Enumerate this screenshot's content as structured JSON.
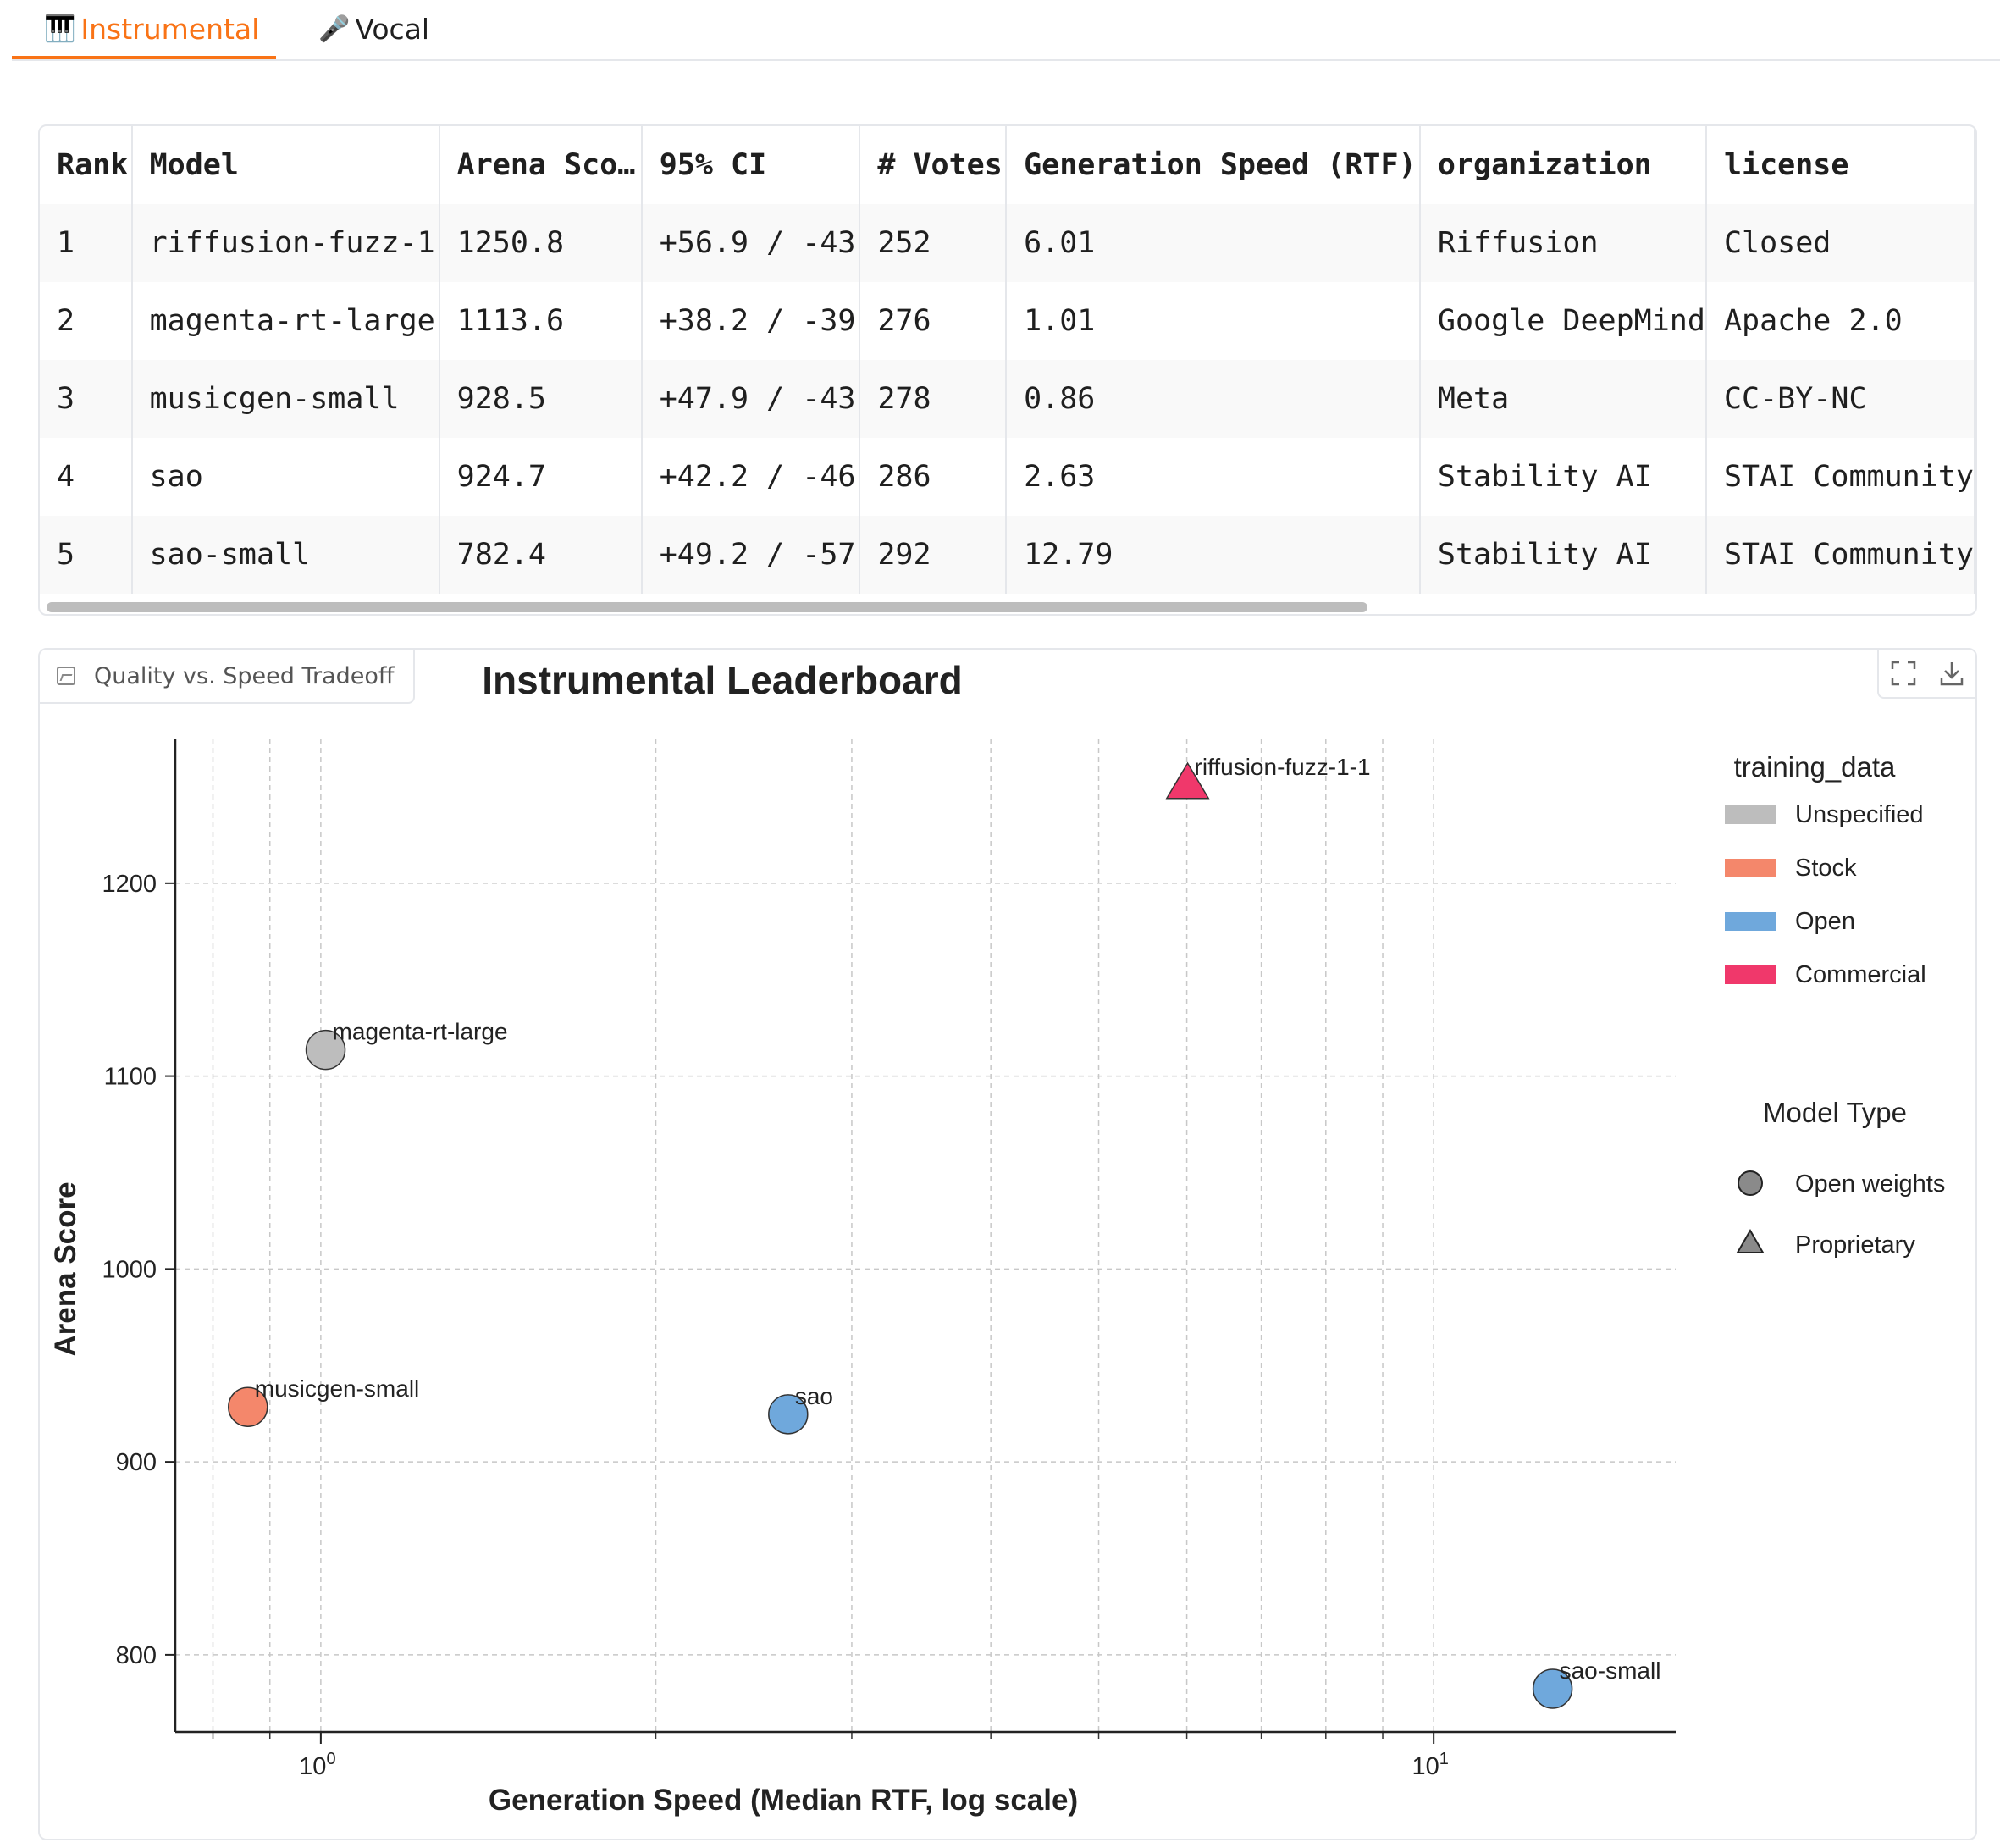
{
  "tabs": [
    {
      "label": "Instrumental",
      "icon": "piano-icon",
      "active": true
    },
    {
      "label": "Vocal",
      "icon": "microphone-icon",
      "active": false
    }
  ],
  "table": {
    "columns": [
      "Rank",
      "Model",
      "Arena Sco…",
      "95% CI",
      "# Votes",
      "Generation Speed (RTF)",
      "organization",
      "license"
    ],
    "rows": [
      [
        "1",
        "riffusion-fuzz-1",
        "1250.8",
        "+56.9 / -43",
        "252",
        "6.01",
        "Riffusion",
        "Closed"
      ],
      [
        "2",
        "magenta-rt-large",
        "1113.6",
        "+38.2 / -39",
        "276",
        "1.01",
        "Google DeepMind",
        "Apache 2.0"
      ],
      [
        "3",
        "musicgen-small",
        "928.5",
        "+47.9 / -43",
        "278",
        "0.86",
        "Meta",
        "CC-BY-NC"
      ],
      [
        "4",
        "sao",
        "924.7",
        "+42.2 / -46",
        "286",
        "2.63",
        "Stability AI",
        "STAI Community"
      ],
      [
        "5",
        "sao-small",
        "782.4",
        "+49.2 / -57",
        "292",
        "12.79",
        "Stability AI",
        "STAI Community"
      ]
    ]
  },
  "plot_panel": {
    "label": "Quality vs. Speed Tradeoff",
    "icons": [
      "image-icon",
      "fullscreen-icon",
      "download-icon"
    ]
  },
  "chart_data": {
    "type": "scatter",
    "title": "Instrumental Leaderboard",
    "xlabel": "Generation Speed (Median RTF, log scale)",
    "ylabel": "Arena Score",
    "xscale": "log",
    "xlim": [
      0.74,
      16.5
    ],
    "ylim": [
      760,
      1275
    ],
    "xticks": [
      {
        "value": 1,
        "base": "10",
        "exp": "0"
      },
      {
        "value": 10,
        "base": "10",
        "exp": "1"
      }
    ],
    "yticks": [
      800,
      900,
      1000,
      1100,
      1200
    ],
    "grid": true,
    "points": [
      {
        "label": "riffusion-fuzz-1-1",
        "x": 6.01,
        "y": 1250.8,
        "training_data": "Commercial",
        "model_type": "Proprietary"
      },
      {
        "label": "magenta-rt-large",
        "x": 1.01,
        "y": 1113.6,
        "training_data": "Unspecified",
        "model_type": "Open weights"
      },
      {
        "label": "musicgen-small",
        "x": 0.86,
        "y": 928.5,
        "training_data": "Stock",
        "model_type": "Open weights"
      },
      {
        "label": "sao",
        "x": 2.63,
        "y": 924.7,
        "training_data": "Open",
        "model_type": "Open weights"
      },
      {
        "label": "sao-small",
        "x": 12.79,
        "y": 782.4,
        "training_data": "Open",
        "model_type": "Open weights"
      }
    ],
    "legend": {
      "placement": "right",
      "color_title": "training_data",
      "colors": [
        {
          "name": "Unspecified",
          "color": "#bdbdbd"
        },
        {
          "name": "Stock",
          "color": "#f4876b"
        },
        {
          "name": "Open",
          "color": "#6fa8dc"
        },
        {
          "name": "Commercial",
          "color": "#f0386b"
        }
      ],
      "shape_title": "Model Type",
      "shapes": [
        {
          "name": "Open weights",
          "marker": "circle"
        },
        {
          "name": "Proprietary",
          "marker": "triangle"
        }
      ]
    }
  }
}
